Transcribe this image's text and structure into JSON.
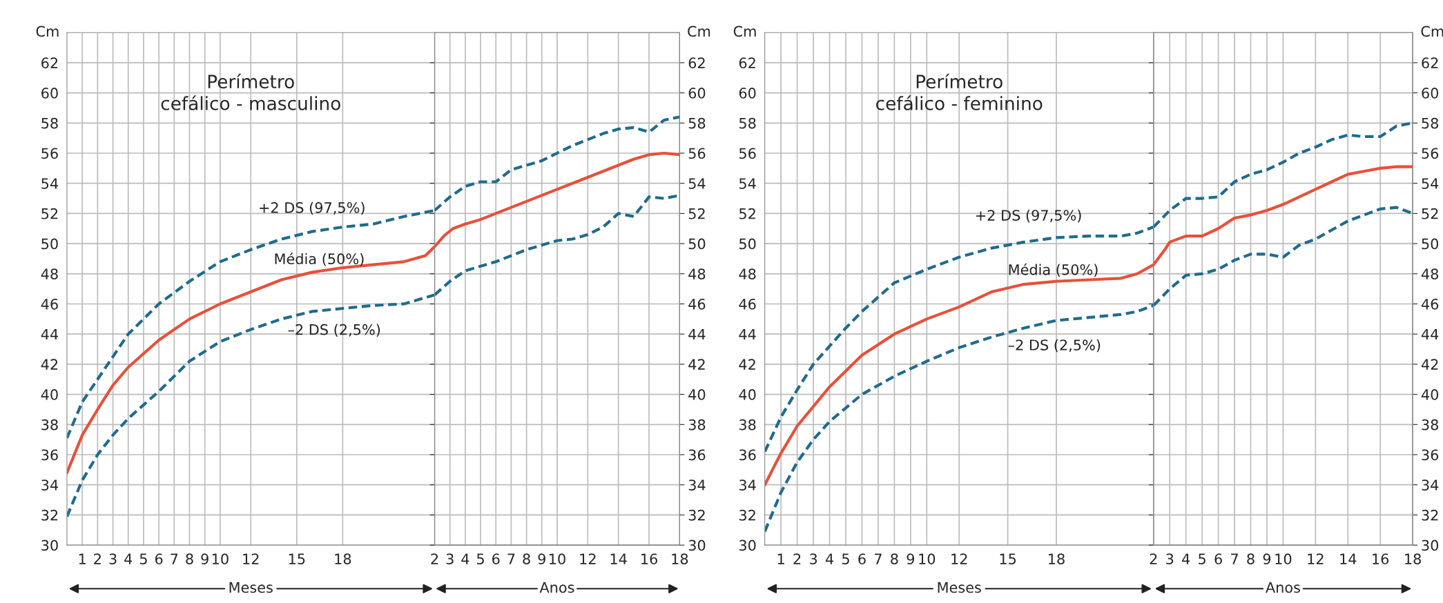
{
  "chart_data": [
    {
      "type": "line",
      "title": "Perímetro\ncefálico - masculino",
      "ylabel": "Cm",
      "annotations": [
        "Meses"
      ],
      "grid": true,
      "marker": "none",
      "xlim": [
        0,
        24
      ],
      "xticks": [
        1,
        2,
        3,
        4,
        5,
        6,
        7,
        8,
        9,
        10,
        12,
        15,
        18
      ],
      "ylim": [
        30,
        64
      ],
      "yticks": [
        30,
        32,
        34,
        36,
        38,
        40,
        42,
        44,
        46,
        48,
        50,
        52,
        54,
        56,
        58,
        60,
        62
      ],
      "series": [
        {
          "name": "+2 DS (97,5%)",
          "color": "#1f6b8c",
          "line_style": "dashed",
          "x": [
            0,
            1,
            2,
            4,
            6,
            8,
            10,
            12,
            14,
            16,
            18,
            20,
            22,
            24
          ],
          "values": [
            37.1,
            39.5,
            41.0,
            44.0,
            46.0,
            47.5,
            48.8,
            49.6,
            50.3,
            50.8,
            51.1,
            51.3,
            51.8,
            52.2
          ]
        },
        {
          "name": "Média (50%)",
          "color": "#e8503a",
          "line_style": "solid",
          "x": [
            0,
            1,
            2,
            3,
            4,
            6,
            8,
            10,
            12,
            14,
            16,
            18,
            20,
            22,
            23.4,
            24
          ],
          "values": [
            34.8,
            37.3,
            39.0,
            40.6,
            41.8,
            43.6,
            45.0,
            46.0,
            46.8,
            47.6,
            48.1,
            48.4,
            48.6,
            48.8,
            49.2,
            49.8
          ]
        },
        {
          "name": "–2 DS (2,5%)",
          "color": "#1f6b8c",
          "line_style": "dashed",
          "x": [
            0,
            1,
            2,
            3,
            4,
            5,
            6,
            8,
            10,
            12,
            14,
            16,
            18,
            20,
            22,
            24
          ],
          "values": [
            31.9,
            34.3,
            36.0,
            37.3,
            38.4,
            39.3,
            40.2,
            42.2,
            43.5,
            44.3,
            45.0,
            45.5,
            45.7,
            45.9,
            46.0,
            46.6
          ]
        }
      ]
    },
    {
      "type": "line",
      "y2label": "Cm",
      "annotations": [
        "Anos"
      ],
      "grid": true,
      "marker": "none",
      "xlim": [
        2,
        18
      ],
      "xticks": [
        2,
        3,
        4,
        5,
        6,
        7,
        8,
        9,
        10,
        12,
        14,
        16,
        18
      ],
      "y2lim": [
        30,
        64
      ],
      "y2ticks": [
        30,
        32,
        34,
        36,
        38,
        40,
        42,
        44,
        46,
        48,
        50,
        52,
        54,
        56,
        58,
        60,
        62
      ],
      "series": [
        {
          "axis": "y2",
          "color": "#1f6b8c",
          "line_style": "dashed",
          "x": [
            2,
            3,
            4,
            5,
            6,
            7,
            8,
            9,
            10,
            11,
            12,
            13,
            14,
            15,
            16,
            17,
            18
          ],
          "values": [
            52.2,
            53.1,
            53.8,
            54.1,
            54.1,
            54.9,
            55.2,
            55.5,
            56.0,
            56.5,
            56.9,
            57.3,
            57.6,
            57.7,
            57.4,
            58.2,
            58.4
          ]
        },
        {
          "axis": "y2",
          "color": "#e8503a",
          "line_style": "solid",
          "x": [
            2,
            2.6,
            3.2,
            4,
            5,
            6,
            7,
            8,
            9,
            10,
            11,
            12,
            13,
            14,
            15,
            16,
            17,
            18
          ],
          "values": [
            49.8,
            50.5,
            51.0,
            51.3,
            51.6,
            52.0,
            52.4,
            52.8,
            53.2,
            53.6,
            54.0,
            54.4,
            54.8,
            55.2,
            55.6,
            55.9,
            56.0,
            55.9
          ]
        },
        {
          "axis": "y2",
          "color": "#1f6b8c",
          "line_style": "dashed",
          "x": [
            2,
            3,
            4,
            5,
            6,
            7,
            8,
            9,
            10,
            11,
            12,
            13,
            14,
            15,
            16,
            17,
            18
          ],
          "values": [
            46.6,
            47.5,
            48.2,
            48.5,
            48.8,
            49.2,
            49.6,
            49.9,
            50.2,
            50.3,
            50.6,
            51.1,
            52.0,
            51.8,
            53.1,
            53.0,
            53.2
          ]
        }
      ]
    },
    {
      "type": "line",
      "title": "Perímetro\ncefálico - feminino",
      "ylabel": "Cm",
      "annotations": [
        "Meses"
      ],
      "grid": true,
      "marker": "none",
      "xlim": [
        0,
        24
      ],
      "xticks": [
        1,
        2,
        3,
        4,
        5,
        6,
        7,
        8,
        9,
        10,
        12,
        15,
        18
      ],
      "ylim": [
        30,
        64
      ],
      "yticks": [
        30,
        32,
        34,
        36,
        38,
        40,
        42,
        44,
        46,
        48,
        50,
        52,
        54,
        56,
        58,
        60,
        62
      ],
      "series": [
        {
          "name": "+2 DS (97,5%)",
          "color": "#1f6b8c",
          "line_style": "dashed",
          "x": [
            0,
            1,
            2,
            3,
            4,
            5,
            6,
            8,
            10,
            12,
            14,
            16,
            18,
            20,
            22,
            23,
            24
          ],
          "values": [
            36.2,
            38.5,
            40.3,
            42.0,
            43.2,
            44.4,
            45.5,
            47.4,
            48.3,
            49.1,
            49.7,
            50.1,
            50.4,
            50.5,
            50.5,
            50.7,
            51.1
          ]
        },
        {
          "name": "Média (50%)",
          "color": "#e8503a",
          "line_style": "solid",
          "x": [
            0,
            1,
            2,
            3,
            4,
            6,
            8,
            10,
            12,
            14,
            16,
            18,
            20,
            22,
            23,
            24
          ],
          "values": [
            34.0,
            36.1,
            37.9,
            39.2,
            40.5,
            42.6,
            44.0,
            45.0,
            45.8,
            46.8,
            47.3,
            47.5,
            47.6,
            47.7,
            48.0,
            48.6
          ]
        },
        {
          "name": "–2 DS (2,5%)",
          "color": "#1f6b8c",
          "line_style": "dashed",
          "x": [
            0,
            1,
            2,
            3,
            4,
            6,
            8,
            10,
            12,
            14,
            16,
            18,
            20,
            22,
            23,
            24
          ],
          "values": [
            30.9,
            33.5,
            35.5,
            37.0,
            38.2,
            40.0,
            41.2,
            42.2,
            43.1,
            43.8,
            44.4,
            44.9,
            45.1,
            45.3,
            45.5,
            45.9
          ]
        }
      ]
    },
    {
      "type": "line",
      "y2label": "Cm",
      "annotations": [
        "Anos"
      ],
      "grid": true,
      "marker": "none",
      "xlim": [
        2,
        18
      ],
      "xticks": [
        2,
        3,
        4,
        5,
        6,
        7,
        8,
        9,
        10,
        12,
        14,
        16,
        18
      ],
      "y2lim": [
        30,
        64
      ],
      "y2ticks": [
        30,
        32,
        34,
        36,
        38,
        40,
        42,
        44,
        46,
        48,
        50,
        52,
        54,
        56,
        58,
        60,
        62
      ],
      "series": [
        {
          "axis": "y2",
          "color": "#1f6b8c",
          "line_style": "dashed",
          "x": [
            2,
            3,
            4,
            5,
            6,
            7,
            8,
            9,
            10,
            11,
            12,
            13,
            14,
            15,
            16,
            17,
            18
          ],
          "values": [
            51.1,
            52.2,
            53.0,
            53.0,
            53.1,
            54.1,
            54.6,
            54.9,
            55.4,
            56.0,
            56.4,
            56.9,
            57.2,
            57.1,
            57.1,
            57.8,
            58.0
          ]
        },
        {
          "axis": "y2",
          "color": "#e8503a",
          "line_style": "solid",
          "x": [
            2,
            2.7,
            3,
            4,
            5,
            6,
            7,
            8,
            9,
            10,
            11,
            12,
            13,
            14,
            15,
            16,
            17,
            18
          ],
          "values": [
            48.6,
            49.6,
            50.1,
            50.5,
            50.5,
            51.0,
            51.7,
            51.9,
            52.2,
            52.6,
            53.1,
            53.6,
            54.1,
            54.6,
            54.8,
            55.0,
            55.1,
            55.1
          ]
        },
        {
          "axis": "y2",
          "color": "#1f6b8c",
          "line_style": "dashed",
          "x": [
            2,
            3,
            4,
            5,
            6,
            7,
            8,
            9,
            10,
            11,
            12,
            13,
            14,
            15,
            16,
            17,
            18
          ],
          "values": [
            45.9,
            47.0,
            47.9,
            48.0,
            48.3,
            48.9,
            49.3,
            49.3,
            49.1,
            49.9,
            50.3,
            50.9,
            51.5,
            51.9,
            52.3,
            52.4,
            52.0
          ]
        }
      ]
    }
  ]
}
